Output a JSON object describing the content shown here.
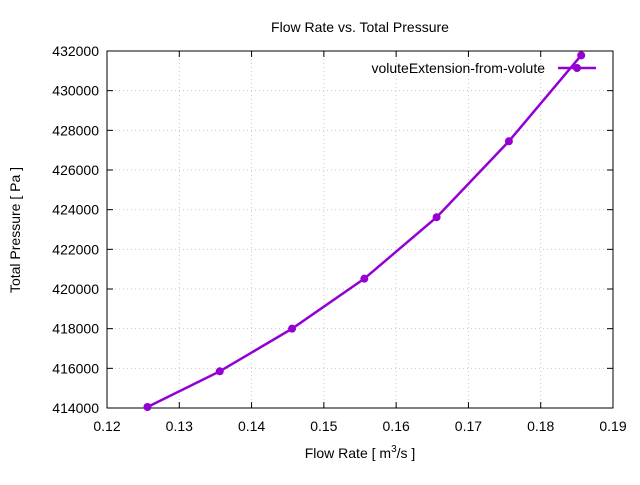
{
  "chart_data": {
    "type": "line",
    "title": "Flow Rate vs. Total Pressure",
    "xlabel_prefix": "Flow Rate [ m",
    "xlabel_sup": "3",
    "xlabel_suffix": "/s ]",
    "ylabel": "Total Pressure [ Pa ]",
    "xlim": [
      0.12,
      0.19
    ],
    "ylim": [
      414000,
      432000
    ],
    "xticks": [
      "0.12",
      "0.13",
      "0.14",
      "0.15",
      "0.16",
      "0.17",
      "0.18",
      "0.19"
    ],
    "yticks": [
      "414000",
      "416000",
      "418000",
      "420000",
      "422000",
      "424000",
      "426000",
      "428000",
      "430000",
      "432000"
    ],
    "grid": true,
    "legend_position": "top-right",
    "series": [
      {
        "name": "voluteExtension-from-volute",
        "color": "#9400d3",
        "x": [
          0.1256,
          0.1356,
          0.1456,
          0.1556,
          0.1656,
          0.1756,
          0.1856
        ],
        "y": [
          414050,
          415850,
          418000,
          420520,
          423620,
          427450,
          431780
        ]
      }
    ]
  }
}
